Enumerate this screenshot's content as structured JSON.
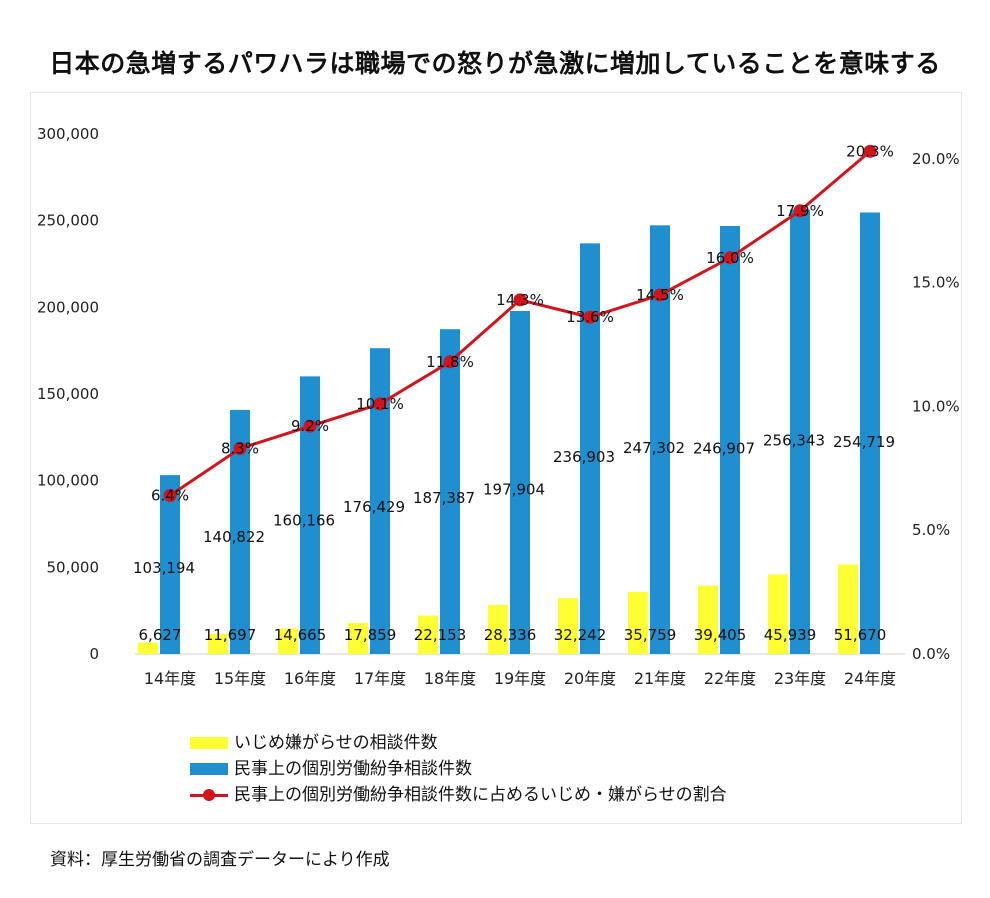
{
  "title": "日本の急増するパワハラは職場での怒りが急激に増加していることを意味する",
  "source": "資料：厚生労働省の調査データーにより作成",
  "colors": {
    "bullying_bar": "#ffff33",
    "total_bar": "#1f8fd0",
    "ratio_line": "#d4141c",
    "gridline": "#cccccc"
  },
  "legend": {
    "items": [
      {
        "label": "いじめ嫌がらせの相談件数",
        "type": "bar",
        "color": "#ffff33"
      },
      {
        "label": "民事上の個別労働紛争相談件数",
        "type": "bar",
        "color": "#1f8fd0"
      },
      {
        "label": "民事上の個別労働紛争相談件数に占めるいじめ・嫌がらせの割合",
        "type": "line",
        "color": "#d4141c"
      }
    ]
  },
  "chart_data": {
    "type": "bar",
    "categories": [
      "14年度",
      "15年度",
      "16年度",
      "17年度",
      "18年度",
      "19年度",
      "20年度",
      "21年度",
      "22年度",
      "23年度",
      "24年度"
    ],
    "series": [
      {
        "name": "いじめ嫌がらせの相談件数",
        "type": "bar",
        "axis": "left",
        "values": [
          6627,
          11697,
          14665,
          17859,
          22153,
          28336,
          32242,
          35759,
          39405,
          45939,
          51670
        ],
        "labels": [
          "6,627",
          "11,697",
          "14,665",
          "17,859",
          "22,153",
          "28,336",
          "32,242",
          "35,759",
          "39,405",
          "45,939",
          "51,670"
        ]
      },
      {
        "name": "民事上の個別労働紛争相談件数",
        "type": "bar",
        "axis": "left",
        "values": [
          103194,
          140822,
          160166,
          176429,
          187387,
          197904,
          236903,
          247302,
          246907,
          256343,
          254719
        ],
        "labels": [
          "103,194",
          "140,822",
          "160,166",
          "176,429",
          "187,387",
          "197,904",
          "236,903",
          "247,302",
          "246,907",
          "256,343",
          "254,719"
        ]
      },
      {
        "name": "民事上の個別労働紛争相談件数に占めるいじめ・嫌がらせの割合",
        "type": "line",
        "axis": "right",
        "values": [
          6.4,
          8.3,
          9.2,
          10.1,
          11.8,
          14.3,
          13.6,
          14.5,
          16.0,
          17.9,
          20.3
        ],
        "labels": [
          "6.4%",
          "8.3%",
          "9.2%",
          "10.1%",
          "11.8%",
          "14.3%",
          "13.6%",
          "14.5%",
          "16.0%",
          "17.9%",
          "20.3%"
        ]
      }
    ],
    "y_left": {
      "ylim": [
        0,
        300000
      ],
      "ticks": [
        0,
        50000,
        100000,
        150000,
        200000,
        250000,
        300000
      ],
      "tick_labels": [
        "0",
        "50,000",
        "100,000",
        "150,000",
        "200,000",
        "250,000",
        "300,000"
      ]
    },
    "y_right": {
      "ylim": [
        0,
        21
      ],
      "ticks": [
        0,
        5,
        10,
        15,
        20
      ],
      "tick_labels": [
        "0.0%",
        "5.0%",
        "10.0%",
        "15.0%",
        "20.0%"
      ]
    },
    "grid": false,
    "legend_position": "bottom"
  }
}
